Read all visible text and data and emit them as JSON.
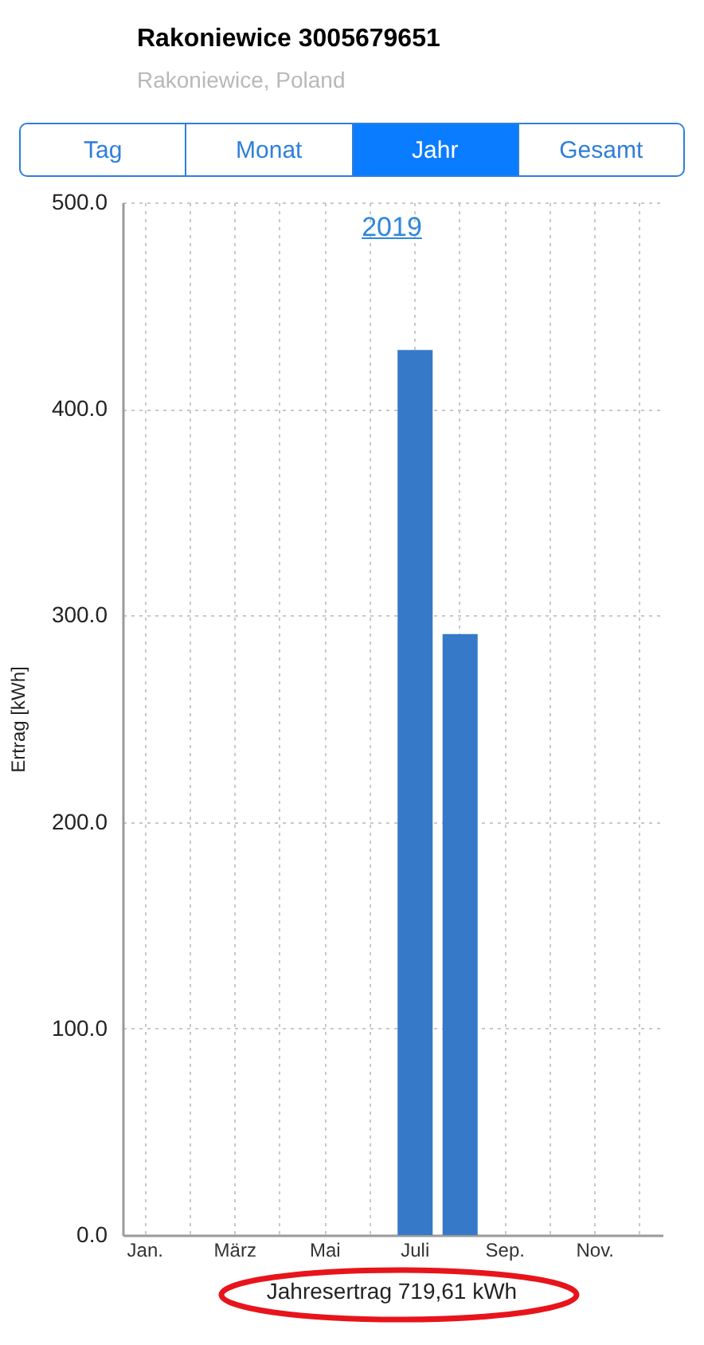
{
  "chart_data": {
    "type": "bar",
    "title": "Rakoniewice 3005679651",
    "subtitle": "Rakoniewice, Poland",
    "ylabel": "Ertrag [kWh]",
    "annotations": [
      "Tag",
      "Monat",
      "Jahr",
      "Gesamt",
      "2019",
      "Jahresertrag 719,61 kWh"
    ],
    "categories": [
      "Jan.",
      null,
      "März",
      null,
      "Mai",
      null,
      "Juli",
      null,
      "Sep.",
      null,
      "Nov.",
      null
    ],
    "values": [
      null,
      null,
      null,
      null,
      null,
      null,
      428.5,
      291,
      null,
      null,
      null,
      null
    ],
    "color": "#3679c8",
    "ylim": [
      0,
      500
    ],
    "yticks": [
      {
        "value": 0,
        "label": "0.0"
      },
      {
        "value": 100,
        "label": "100.0"
      },
      {
        "value": 200,
        "label": "200.0"
      },
      {
        "value": 300,
        "label": "300.0"
      },
      {
        "value": 400,
        "label": "400.0"
      },
      {
        "value": 500,
        "label": "500.0"
      }
    ],
    "grid": true
  }
}
